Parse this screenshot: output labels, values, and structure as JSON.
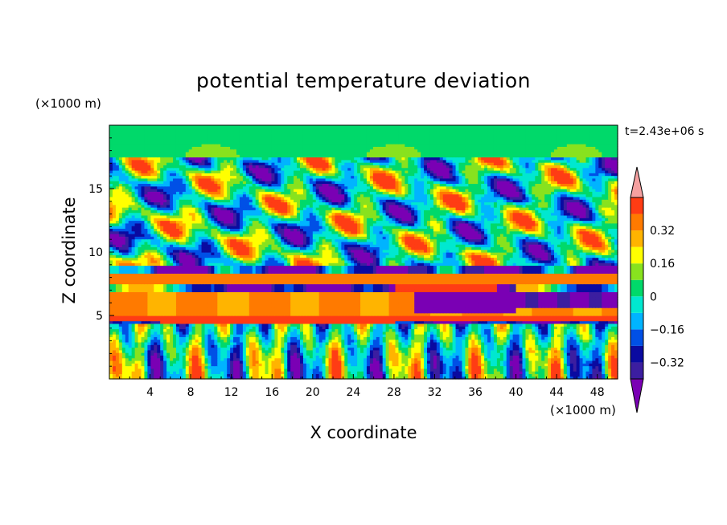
{
  "chart_data": {
    "type": "heatmap",
    "title": "potential temperature deviation",
    "xlabel": "X coordinate",
    "ylabel": "Z coordinate",
    "x_unit": "(×1000 m)",
    "y_unit": "(×1000 m)",
    "time_label": "t=2.43e+06 s",
    "xlim": [
      0,
      50
    ],
    "ylim": [
      0,
      20
    ],
    "x_ticks": [
      "4",
      "8",
      "12",
      "16",
      "20",
      "24",
      "28",
      "32",
      "36",
      "40",
      "44",
      "48"
    ],
    "y_ticks": [
      "5",
      "10",
      "15"
    ],
    "colorbar": {
      "levels": [
        -0.4,
        -0.32,
        -0.24,
        -0.16,
        -0.08,
        0,
        0.08,
        0.16,
        0.24,
        0.32,
        0.4
      ],
      "labels": [
        "0.32",
        "0.16",
        "0",
        "−0.16",
        "−0.32"
      ],
      "colors": [
        "#7a00b4",
        "#3c1ea0",
        "#0a0aa0",
        "#0050e6",
        "#00b4ff",
        "#00e8d0",
        "#00d96a",
        "#88e21e",
        "#ffff00",
        "#ffb400",
        "#ff7a00",
        "#ff3c14",
        "#f5a0a0"
      ]
    }
  }
}
